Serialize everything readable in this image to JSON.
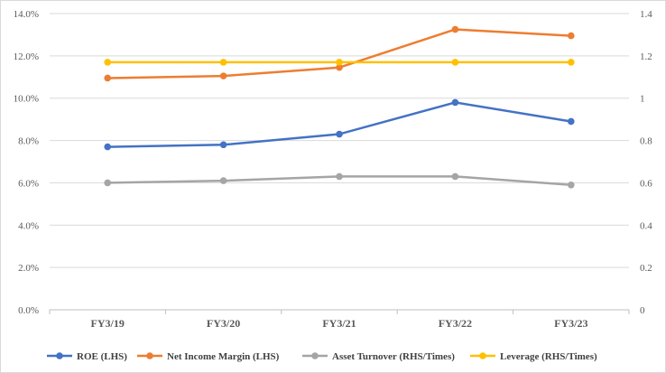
{
  "chart_data": {
    "type": "line",
    "categories": [
      "FY3/19",
      "FY3/20",
      "FY3/21",
      "FY3/22",
      "FY3/23"
    ],
    "left_axis": {
      "min": 0,
      "max": 14,
      "step": 2,
      "format": "percent1",
      "ticks": [
        "0.0%",
        "2.0%",
        "4.0%",
        "6.0%",
        "8.0%",
        "10.0%",
        "12.0%",
        "14.0%"
      ]
    },
    "right_axis": {
      "min": 0,
      "max": 1.4,
      "step": 0.2,
      "ticks": [
        "0",
        "0.2",
        "0.4",
        "0.6",
        "0.8",
        "1",
        "1.2",
        "1.4"
      ]
    },
    "gridlines": true,
    "legend_position": "bottom",
    "series": [
      {
        "name": "ROE (LHS)",
        "axis": "left",
        "color": "#4472C4",
        "values": [
          7.7,
          7.8,
          8.3,
          9.8,
          8.9
        ]
      },
      {
        "name": "Net Income Margin (LHS)",
        "axis": "left",
        "color": "#ED7D31",
        "values": [
          10.95,
          11.05,
          11.45,
          13.25,
          12.95
        ]
      },
      {
        "name": "Asset Turnover (RHS/Times)",
        "axis": "right",
        "color": "#A5A5A5",
        "values": [
          0.6,
          0.61,
          0.63,
          0.63,
          0.59
        ]
      },
      {
        "name": "Leverage (RHS/Times)",
        "axis": "right",
        "color": "#FFC000",
        "values": [
          1.17,
          1.17,
          1.17,
          1.17,
          1.17
        ]
      }
    ]
  }
}
